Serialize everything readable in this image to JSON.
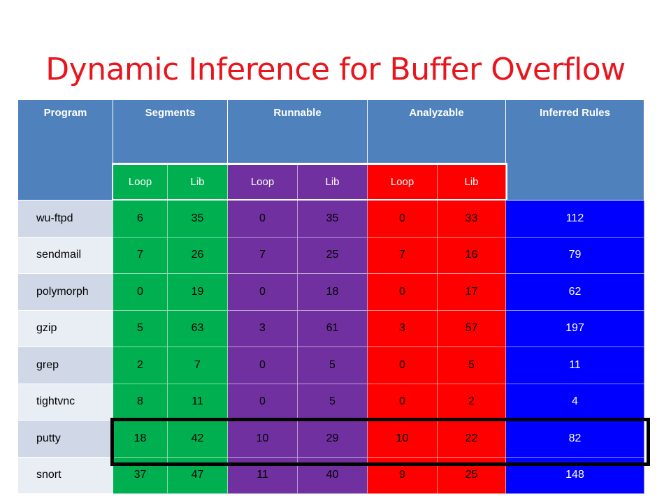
{
  "title": "Dynamic Inference for Buffer Overflow",
  "headers": {
    "program": "Program",
    "segments": "Segments",
    "runnable": "Runnable",
    "analyzable": "Analyzable",
    "inferred": "Inferred Rules"
  },
  "subheaders": [
    "Loop",
    "Lib",
    "Loop",
    "Lib",
    "Loop",
    "Lib"
  ],
  "rows": [
    {
      "program": "wu-ftpd",
      "values": [
        "6",
        "35",
        "0",
        "35",
        "0",
        "33"
      ],
      "rules": "112"
    },
    {
      "program": "sendmail",
      "values": [
        "7",
        "26",
        "7",
        "25",
        "7",
        "16"
      ],
      "rules": "79"
    },
    {
      "program": "polymorph",
      "values": [
        "0",
        "19",
        "0",
        "18",
        "0",
        "17"
      ],
      "rules": "62"
    },
    {
      "program": "gzip",
      "values": [
        "5",
        "63",
        "3",
        "61",
        "3",
        "57"
      ],
      "rules": "197"
    },
    {
      "program": "grep",
      "values": [
        "2",
        "7",
        "0",
        "5",
        "0",
        "5"
      ],
      "rules": "11"
    },
    {
      "program": "tightvnc",
      "values": [
        "8",
        "11",
        "0",
        "5",
        "0",
        "2"
      ],
      "rules": "4"
    },
    {
      "program": "putty",
      "values": [
        "18",
        "42",
        "10",
        "29",
        "10",
        "22"
      ],
      "rules": "82"
    },
    {
      "program": "snort",
      "values": [
        "37",
        "47",
        "11",
        "40",
        "9",
        "25"
      ],
      "rules": "148"
    }
  ],
  "colors": {
    "title": "#e8151c",
    "header": "#4f81bd",
    "segments": "#00b050",
    "runnable": "#7030a0",
    "analyzable": "#ff0000",
    "inferred": "#0000ff",
    "row_label_dark": "#d0d8e8",
    "row_label_light": "#e9edf4"
  },
  "highlighted_row": "putty"
}
